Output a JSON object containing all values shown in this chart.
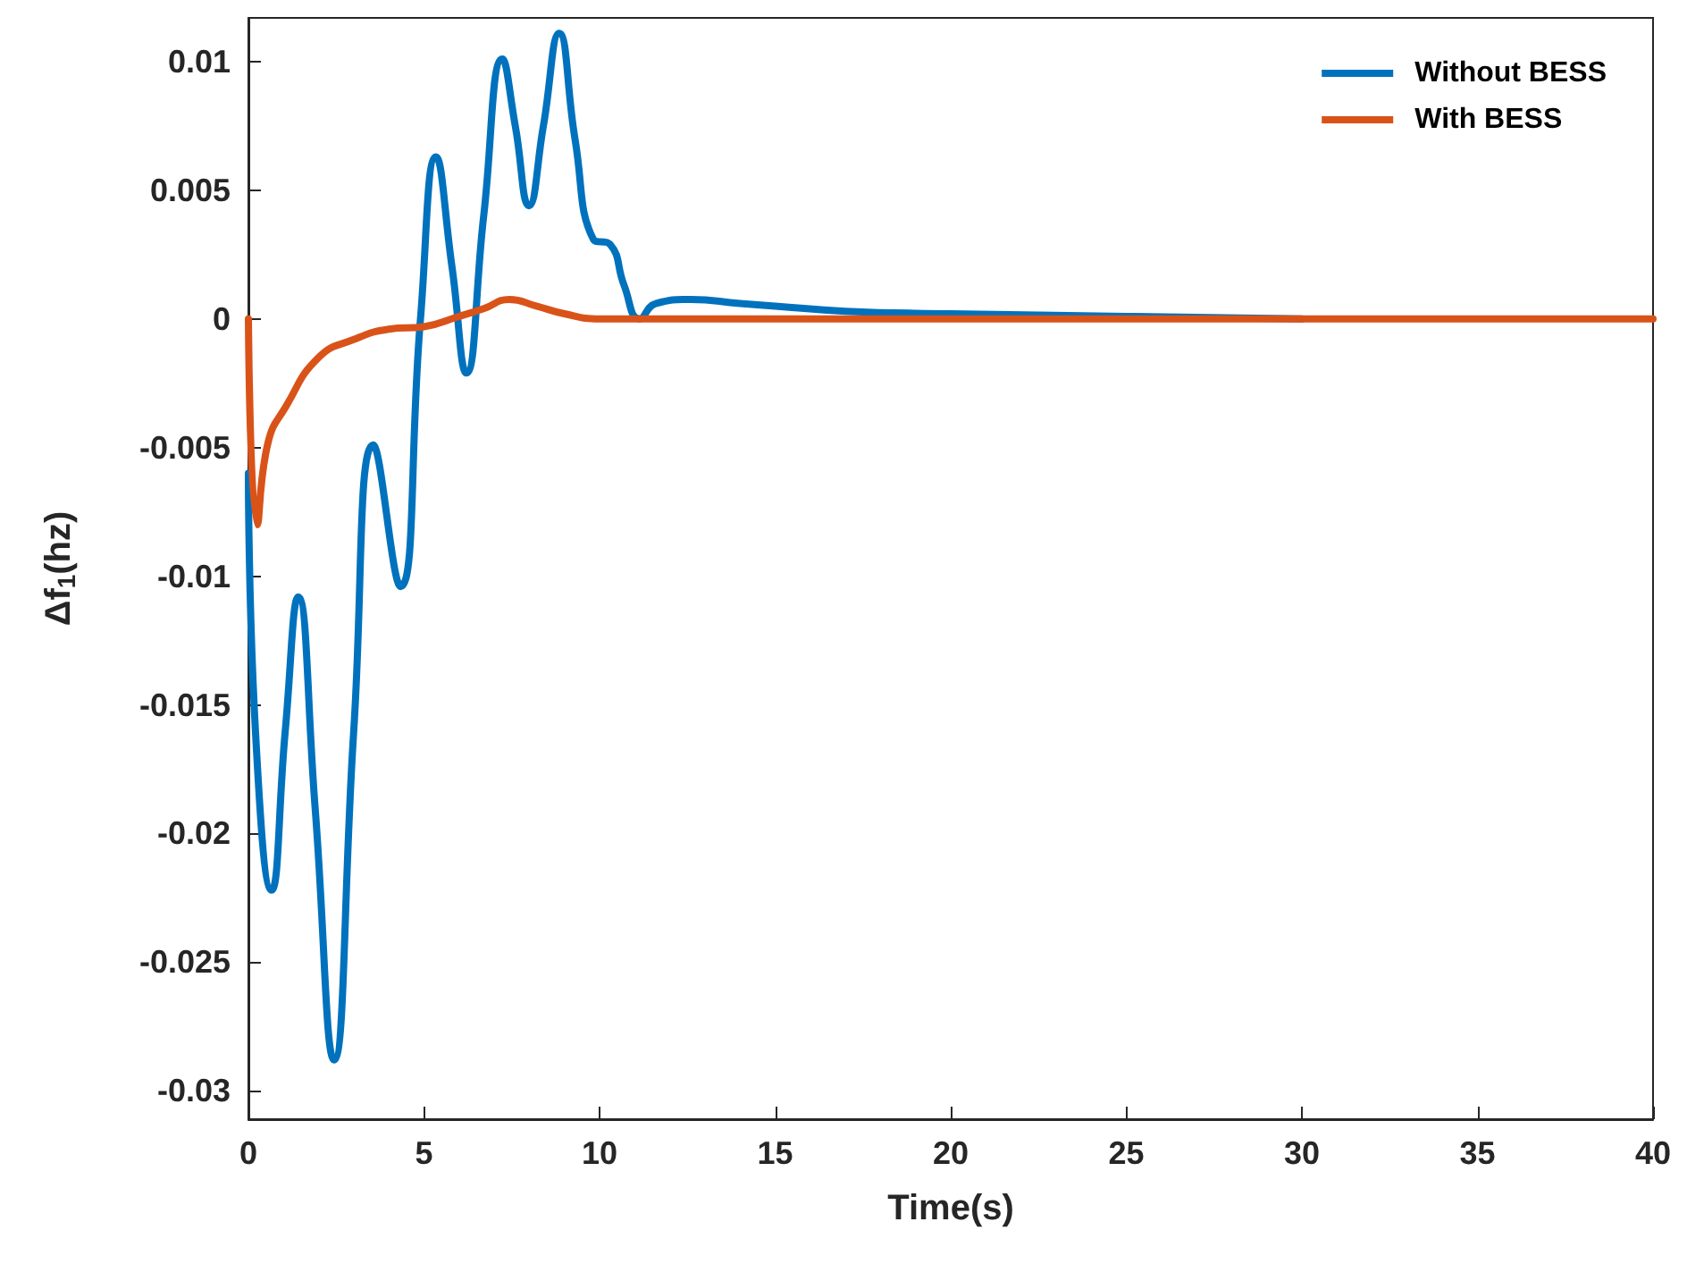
{
  "chart_data": {
    "type": "line",
    "xlabel": "Time(s)",
    "ylabel": "Δf$_{1}$(hz)",
    "xlim": [
      0,
      40
    ],
    "xticks": [
      0,
      5,
      10,
      15,
      20,
      25,
      30,
      35,
      40
    ],
    "ylim": [
      -0.0311,
      0.0117
    ],
    "yticks": [
      -0.03,
      -0.025,
      -0.02,
      -0.015,
      -0.01,
      -0.005,
      0,
      0.005,
      0.01
    ],
    "grid": false,
    "legend": "top right",
    "marker": "none",
    "line_style": "solid",
    "series": [
      {
        "name": "Without BESS",
        "color": "#0072bd",
        "x": [
          0,
          0.2,
          0.66,
          1.05,
          1.42,
          1.9,
          2.44,
          3.0,
          3.56,
          4.33,
          4.9,
          5.34,
          5.8,
          6.21,
          6.7,
          7.23,
          7.6,
          7.99,
          8.4,
          8.85,
          9.3,
          9.82,
          10.3,
          10.7,
          11.14,
          11.6,
          12.6,
          14,
          15,
          17,
          20,
          25,
          30
        ],
        "values": [
          -0.006,
          -0.016,
          -0.0222,
          -0.016,
          -0.0108,
          -0.019,
          -0.0288,
          -0.016,
          -0.0049,
          -0.0104,
          0,
          0.0063,
          0.002,
          -0.0021,
          0.004,
          0.0101,
          0.0075,
          0.0044,
          0.0075,
          0.0111,
          0.007,
          0.0031,
          0.0029,
          0.0013,
          0,
          0.0006,
          0.00076,
          0.0006,
          0.0005,
          0.0003,
          0.0002,
          0.0001,
          0
        ]
      },
      {
        "name": "With BESS",
        "color": "#d95319",
        "x": [
          0,
          0.25,
          0.56,
          1.07,
          2,
          3,
          4,
          5,
          6,
          6.7,
          7.43,
          8.2,
          9,
          10,
          12,
          20,
          30,
          40
        ],
        "values": [
          0,
          -0.008,
          -0.0048,
          -0.0034,
          -0.0015,
          -0.0008,
          -0.0004,
          -0.0003,
          0.0001,
          0.0004,
          0.00076,
          0.0005,
          0.0002,
          0,
          0,
          0,
          0,
          0
        ]
      }
    ]
  }
}
